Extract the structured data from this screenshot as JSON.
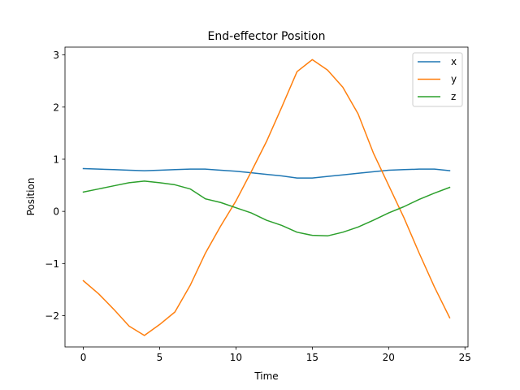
{
  "chart_data": {
    "type": "line",
    "title": "End-effector Position",
    "xlabel": "Time",
    "ylabel": "Position",
    "xlim": [
      -1.2,
      25.2
    ],
    "ylim": [
      -2.6,
      3.15
    ],
    "xticks": [
      0,
      5,
      10,
      15,
      20,
      25
    ],
    "yticks": [
      -2,
      -1,
      0,
      1,
      2,
      3
    ],
    "xtick_labels": [
      "0",
      "5",
      "10",
      "15",
      "20",
      "25"
    ],
    "ytick_labels": [
      "−2",
      "−1",
      "0",
      "1",
      "2",
      "3"
    ],
    "grid": false,
    "legend": "top-right",
    "x": [
      0,
      1,
      2,
      3,
      4,
      5,
      6,
      7,
      8,
      9,
      10,
      11,
      12,
      13,
      14,
      15,
      16,
      17,
      18,
      19,
      20,
      21,
      22,
      23,
      24
    ],
    "series": [
      {
        "name": "x",
        "color": "#1f77b4",
        "values": [
          0.82,
          0.81,
          0.8,
          0.79,
          0.78,
          0.79,
          0.8,
          0.81,
          0.81,
          0.79,
          0.77,
          0.74,
          0.71,
          0.68,
          0.64,
          0.64,
          0.67,
          0.7,
          0.73,
          0.76,
          0.79,
          0.8,
          0.81,
          0.81,
          0.78
        ]
      },
      {
        "name": "y",
        "color": "#ff7f0e",
        "values": [
          -1.33,
          -1.58,
          -1.88,
          -2.2,
          -2.38,
          -2.17,
          -1.93,
          -1.42,
          -0.8,
          -0.28,
          0.2,
          0.76,
          1.34,
          2.0,
          2.68,
          2.91,
          2.71,
          2.38,
          1.87,
          1.12,
          0.5,
          -0.12,
          -0.8,
          -1.45,
          -2.04
        ]
      },
      {
        "name": "z",
        "color": "#2ca02c",
        "values": [
          0.37,
          0.43,
          0.49,
          0.55,
          0.58,
          0.55,
          0.51,
          0.43,
          0.24,
          0.17,
          0.07,
          -0.03,
          -0.17,
          -0.27,
          -0.4,
          -0.46,
          -0.47,
          -0.4,
          -0.3,
          -0.17,
          -0.03,
          0.09,
          0.23,
          0.35,
          0.46
        ]
      }
    ]
  }
}
